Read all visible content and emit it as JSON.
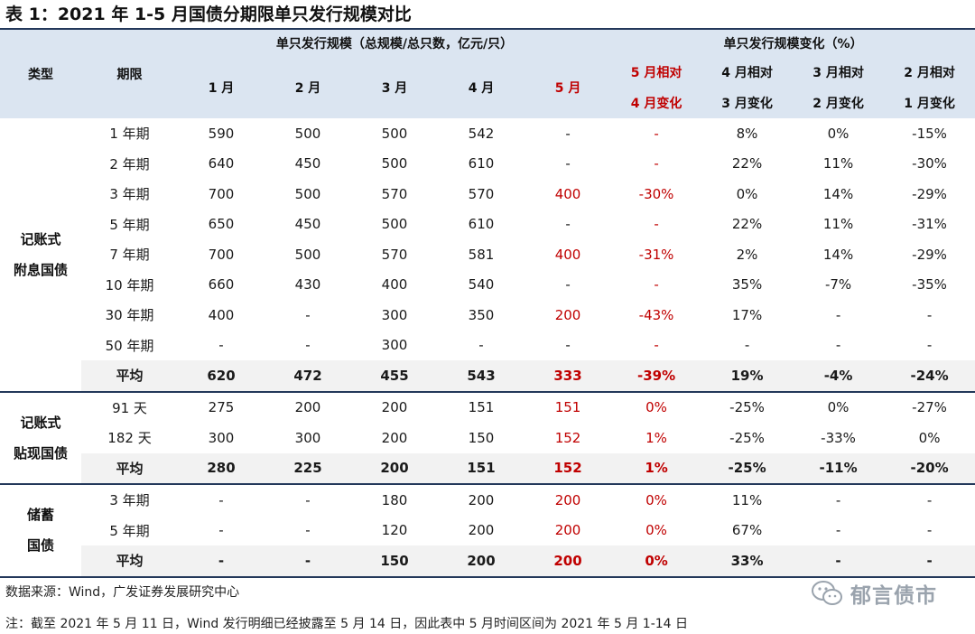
{
  "title": "表 1：2021 年 1-5 月国债分期限单只发行规模对比",
  "header": {
    "type": "类型",
    "term": "期限",
    "group_size": "单只发行规模（总规模/总只数，亿元/只）",
    "group_change": "单只发行规模变化（%）",
    "months": [
      "1 月",
      "2 月",
      "3 月",
      "4 月",
      "5 月"
    ],
    "changes": [
      {
        "l1": "5 月相对",
        "l2": "4 月变化"
      },
      {
        "l1": "4 月相对",
        "l2": "3 月变化"
      },
      {
        "l1": "3 月相对",
        "l2": "2 月变化"
      },
      {
        "l1": "2 月相对",
        "l2": "1 月变化"
      }
    ]
  },
  "groups": [
    {
      "type_l1": "记账式",
      "type_l2": "附息国债",
      "rows": [
        {
          "term": "1 年期",
          "v": [
            "590",
            "500",
            "500",
            "542",
            "-"
          ],
          "c": [
            "-",
            "8%",
            "0%",
            "-15%"
          ]
        },
        {
          "term": "2 年期",
          "v": [
            "640",
            "450",
            "500",
            "610",
            "-"
          ],
          "c": [
            "-",
            "22%",
            "11%",
            "-30%"
          ]
        },
        {
          "term": "3 年期",
          "v": [
            "700",
            "500",
            "570",
            "570",
            "400"
          ],
          "c": [
            "-30%",
            "0%",
            "14%",
            "-29%"
          ]
        },
        {
          "term": "5 年期",
          "v": [
            "650",
            "450",
            "500",
            "610",
            "-"
          ],
          "c": [
            "-",
            "22%",
            "11%",
            "-31%"
          ]
        },
        {
          "term": "7 年期",
          "v": [
            "700",
            "500",
            "570",
            "581",
            "400"
          ],
          "c": [
            "-31%",
            "2%",
            "14%",
            "-29%"
          ]
        },
        {
          "term": "10 年期",
          "v": [
            "660",
            "430",
            "400",
            "540",
            "-"
          ],
          "c": [
            "-",
            "35%",
            "-7%",
            "-35%"
          ]
        },
        {
          "term": "30 年期",
          "v": [
            "400",
            "-",
            "300",
            "350",
            "200"
          ],
          "c": [
            "-43%",
            "17%",
            "-",
            "-"
          ]
        },
        {
          "term": "50 年期",
          "v": [
            "-",
            "-",
            "300",
            "-",
            "-"
          ],
          "c": [
            "-",
            "-",
            "-",
            "-"
          ]
        }
      ],
      "avg": {
        "term": "平均",
        "v": [
          "620",
          "472",
          "455",
          "543",
          "333"
        ],
        "c": [
          "-39%",
          "19%",
          "-4%",
          "-24%"
        ]
      }
    },
    {
      "type_l1": "记账式",
      "type_l2": "贴现国债",
      "rows": [
        {
          "term": "91 天",
          "v": [
            "275",
            "200",
            "200",
            "151",
            "151"
          ],
          "c": [
            "0%",
            "-25%",
            "0%",
            "-27%"
          ]
        },
        {
          "term": "182 天",
          "v": [
            "300",
            "300",
            "200",
            "150",
            "152"
          ],
          "c": [
            "1%",
            "-25%",
            "-33%",
            "0%"
          ]
        }
      ],
      "avg": {
        "term": "平均",
        "v": [
          "280",
          "225",
          "200",
          "151",
          "152"
        ],
        "c": [
          "1%",
          "-25%",
          "-11%",
          "-20%"
        ]
      }
    },
    {
      "type_l1": "储蓄",
      "type_l2": "国债",
      "rows": [
        {
          "term": "3 年期",
          "v": [
            "-",
            "-",
            "180",
            "200",
            "200"
          ],
          "c": [
            "0%",
            "11%",
            "-",
            "-"
          ]
        },
        {
          "term": "5 年期",
          "v": [
            "-",
            "-",
            "120",
            "200",
            "200"
          ],
          "c": [
            "0%",
            "67%",
            "-",
            "-"
          ]
        }
      ],
      "avg": {
        "term": "平均",
        "v": [
          "-",
          "-",
          "150",
          "200",
          "200"
        ],
        "c": [
          "0%",
          "33%",
          "-",
          "-"
        ]
      }
    }
  ],
  "footer": {
    "source": "数据来源：Wind，广发证券发展研究中心",
    "note": "注：截至 2021 年 5 月 11 日，Wind 发行明细已经披露至 5 月 14 日，因此表中 5 月时间区间为 2021 年 5 月 1-14 日"
  },
  "watermark": {
    "text": "郁言债市",
    "icon": "wechat-icon"
  },
  "colors": {
    "header_bg": "#dbe5f1",
    "highlight": "#c00000",
    "rule": "#23385a",
    "avg_bg": "#f2f2f2"
  }
}
